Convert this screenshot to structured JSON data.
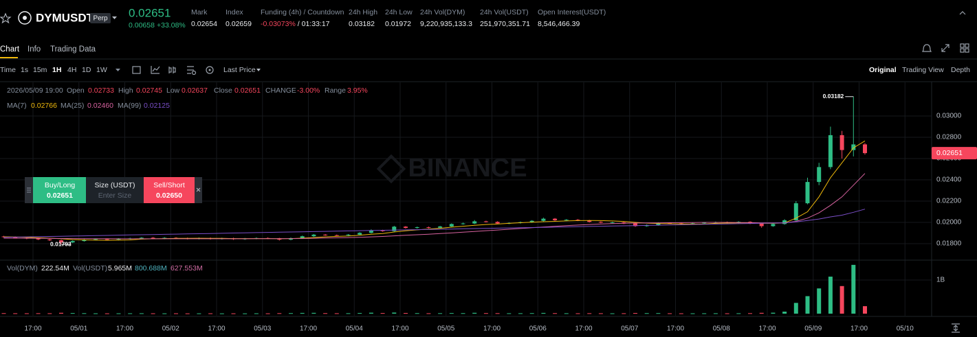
{
  "header": {
    "symbol": "DYMUSDT",
    "badge": "Perp",
    "price": "0.02651",
    "change": "0.00658",
    "change_pct": "+33.08%",
    "stats": [
      {
        "label": "Mark",
        "value": "0.02654"
      },
      {
        "label": "Index",
        "value": "0.02659"
      },
      {
        "label": "Funding (4h) / Countdown",
        "value": "-0.03073%",
        "countdown": "/ 01:33:17"
      },
      {
        "label": "24h High",
        "value": "0.03182"
      },
      {
        "label": "24h Low",
        "value": "0.01972"
      },
      {
        "label": "24h Vol(DYM)",
        "value": "9,220,935,133.3"
      },
      {
        "label": "24h Vol(USDT)",
        "value": "251,970,351.71"
      },
      {
        "label": "Open Interest(USDT)",
        "value": "8,546,466.39"
      }
    ]
  },
  "tabs": [
    "Chart",
    "Info",
    "Trading Data"
  ],
  "toolbar": {
    "intervals": [
      "Time",
      "1s",
      "15m",
      "1H",
      "4H",
      "1D",
      "1W"
    ],
    "price_source": "Last Price",
    "views": [
      "Original",
      "Trading View",
      "Depth"
    ]
  },
  "ohlc_info": {
    "time": "2026/05/09 19:00",
    "fields": [
      {
        "label": "Open",
        "value": "0.02733"
      },
      {
        "label": "High",
        "value": "0.02745"
      },
      {
        "label": "Low",
        "value": "0.02637"
      },
      {
        "label": "Close",
        "value": "0.02651"
      },
      {
        "label": "CHANGE",
        "value": "-3.00%"
      },
      {
        "label": "Range",
        "value": "3.95%"
      }
    ]
  },
  "ma_legend": [
    {
      "name": "MA(7)",
      "value": "0.02766"
    },
    {
      "name": "MA(25)",
      "value": "0.02460"
    },
    {
      "name": "MA(99)",
      "value": "0.02125"
    }
  ],
  "order_panel": {
    "buy": {
      "label": "Buy/Long",
      "price": "0.02651"
    },
    "size": {
      "label": "Size (USDT)",
      "placeholder": "Enter Size"
    },
    "sell": {
      "label": "Sell/Short",
      "price": "0.02650"
    }
  },
  "watermark": "BINANCE",
  "volume_legend": [
    {
      "label": "Vol(DYM)",
      "value": "222.54M"
    },
    {
      "label": "Vol(USDT)",
      "value": "5.965M"
    },
    {
      "value": "800.688M"
    },
    {
      "value": "627.553M"
    }
  ],
  "chart_data": [
    {
      "type": "candlestick",
      "up_color": "#2ebd85",
      "down_color": "#f6465d",
      "grid": true,
      "open": [
        0.01868,
        0.01862,
        0.01855,
        0.01848,
        0.0184,
        0.01832,
        0.01812,
        0.01825,
        0.01838,
        0.01843,
        0.01838,
        0.01846,
        0.0185,
        0.01856,
        0.01848,
        0.01855,
        0.01851,
        0.01846,
        0.01852,
        0.01845,
        0.0185,
        0.01842,
        0.01848,
        0.01853,
        0.01849,
        0.01838,
        0.01852,
        0.0187,
        0.01885,
        0.0188,
        0.01878,
        0.01885,
        0.01902,
        0.01925,
        0.01918,
        0.0196,
        0.01948,
        0.01955,
        0.0195,
        0.01962,
        0.01985,
        0.0199,
        0.0201,
        0.02005,
        0.0199,
        0.01995,
        0.02002,
        0.02015,
        0.02035,
        0.0202,
        0.02025,
        0.02018,
        0.02005,
        0.01998,
        0.02,
        0.0199,
        0.01965,
        0.01975,
        0.01995,
        0.01992,
        0.01985,
        0.01992,
        0.01998,
        0.02002,
        0.01995,
        0.02005,
        0.0199,
        0.01965,
        0.01985,
        0.0202,
        0.0218,
        0.0238,
        0.0252,
        0.0282,
        0.0268,
        0.02733
      ],
      "high": [
        0.01874,
        0.01868,
        0.01861,
        0.01854,
        0.01846,
        0.01838,
        0.01831,
        0.01844,
        0.01849,
        0.01849,
        0.01852,
        0.01856,
        0.01862,
        0.01862,
        0.01861,
        0.01861,
        0.01857,
        0.01858,
        0.01858,
        0.01856,
        0.01856,
        0.01854,
        0.01859,
        0.01859,
        0.01855,
        0.01858,
        0.01876,
        0.01891,
        0.01891,
        0.01886,
        0.01891,
        0.01908,
        0.01935,
        0.01931,
        0.01968,
        0.01966,
        0.01961,
        0.01961,
        0.01968,
        0.01991,
        0.01998,
        0.02022,
        0.02016,
        0.02011,
        0.02001,
        0.02008,
        0.02021,
        0.02045,
        0.02041,
        0.02031,
        0.02031,
        0.02024,
        0.02011,
        0.02006,
        0.02006,
        0.01996,
        0.01981,
        0.02001,
        0.02001,
        0.01998,
        0.01998,
        0.02004,
        0.02008,
        0.02008,
        0.02011,
        0.02011,
        0.01996,
        0.01991,
        0.0203,
        0.022,
        0.0242,
        0.0256,
        0.029,
        0.0286,
        0.03182,
        0.02745
      ],
      "low": [
        0.01856,
        0.01849,
        0.01842,
        0.01834,
        0.01826,
        0.01793,
        0.01806,
        0.01819,
        0.01832,
        0.01832,
        0.01832,
        0.0184,
        0.01844,
        0.01842,
        0.01842,
        0.01845,
        0.0184,
        0.0184,
        0.01839,
        0.01839,
        0.01836,
        0.01836,
        0.01842,
        0.01843,
        0.0183,
        0.01832,
        0.01846,
        0.01864,
        0.01874,
        0.01872,
        0.01872,
        0.01879,
        0.01896,
        0.01912,
        0.01912,
        0.01942,
        0.01942,
        0.01944,
        0.01944,
        0.01956,
        0.01979,
        0.01984,
        0.01999,
        0.01984,
        0.01984,
        0.01989,
        0.01996,
        0.02009,
        0.02014,
        0.02014,
        0.02012,
        0.01999,
        0.01992,
        0.01992,
        0.01984,
        0.01958,
        0.01959,
        0.01969,
        0.01986,
        0.01979,
        0.01979,
        0.01986,
        0.01992,
        0.01989,
        0.01989,
        0.01984,
        0.0195,
        0.01959,
        0.01979,
        0.02014,
        0.0217,
        0.0235,
        0.025,
        0.026,
        0.0262,
        0.02637
      ],
      "close": [
        0.01862,
        0.01855,
        0.01848,
        0.0184,
        0.01832,
        0.01812,
        0.01825,
        0.01838,
        0.01843,
        0.01838,
        0.01846,
        0.0185,
        0.01856,
        0.01848,
        0.01855,
        0.01851,
        0.01846,
        0.01852,
        0.01845,
        0.0185,
        0.01842,
        0.01848,
        0.01853,
        0.01849,
        0.01838,
        0.01852,
        0.0187,
        0.01885,
        0.0188,
        0.01878,
        0.01885,
        0.01902,
        0.01925,
        0.01918,
        0.0196,
        0.01948,
        0.01955,
        0.0195,
        0.01962,
        0.01985,
        0.0199,
        0.0201,
        0.02005,
        0.0199,
        0.01995,
        0.02002,
        0.02015,
        0.02035,
        0.0202,
        0.02025,
        0.02018,
        0.02005,
        0.01998,
        0.02,
        0.0199,
        0.01965,
        0.01975,
        0.01995,
        0.01992,
        0.01985,
        0.01992,
        0.01998,
        0.02002,
        0.01995,
        0.02005,
        0.0199,
        0.01965,
        0.01985,
        0.0202,
        0.0218,
        0.0238,
        0.0252,
        0.0282,
        0.0268,
        0.02733,
        0.02651
      ],
      "ma_series": [
        {
          "color": "#f0b90b",
          "values": [
            0.01865,
            0.01863,
            0.0186,
            0.01856,
            0.01852,
            0.01846,
            0.01839,
            0.01836,
            0.01833,
            0.01832,
            0.01833,
            0.01835,
            0.01843,
            0.01846,
            0.01848,
            0.0185,
            0.0185,
            0.01851,
            0.0185,
            0.0185,
            0.01848,
            0.01848,
            0.01848,
            0.01848,
            0.01847,
            0.01848,
            0.01852,
            0.01858,
            0.01864,
            0.01869,
            0.01872,
            0.01879,
            0.01889,
            0.01896,
            0.0191,
            0.01921,
            0.0193,
            0.01937,
            0.01945,
            0.01955,
            0.01964,
            0.01973,
            0.0198,
            0.01985,
            0.01991,
            0.01997,
            0.02002,
            0.02007,
            0.0201,
            0.02014,
            0.02017,
            0.02018,
            0.02017,
            0.02014,
            0.02009,
            0.02,
            0.01993,
            0.0199,
            0.01988,
            0.01986,
            0.01985,
            0.01985,
            0.01991,
            0.01994,
            0.01996,
            0.01995,
            0.01992,
            0.01991,
            0.01995,
            0.0204,
            0.021,
            0.0224,
            0.0242,
            0.0256,
            0.027,
            0.02766
          ]
        },
        {
          "color": "#d863a0",
          "values": [
            0.01852,
            0.01852,
            0.01851,
            0.01851,
            0.0185,
            0.01849,
            0.01848,
            0.01848,
            0.01847,
            0.01847,
            0.01846,
            0.01846,
            0.01846,
            0.01846,
            0.01846,
            0.01846,
            0.01846,
            0.01846,
            0.01846,
            0.01846,
            0.01846,
            0.01846,
            0.01847,
            0.01847,
            0.01847,
            0.01848,
            0.01849,
            0.01851,
            0.01853,
            0.01855,
            0.01857,
            0.0186,
            0.01864,
            0.01868,
            0.01874,
            0.01879,
            0.01884,
            0.01889,
            0.01895,
            0.01901,
            0.01908,
            0.01915,
            0.01922,
            0.01929,
            0.01936,
            0.01943,
            0.0195,
            0.01957,
            0.01963,
            0.01969,
            0.01975,
            0.0198,
            0.01985,
            0.01989,
            0.01992,
            0.01994,
            0.01995,
            0.01996,
            0.01997,
            0.01998,
            0.01999,
            0.02,
            0.02,
            0.02,
            0.01999,
            0.01998,
            0.01996,
            0.01995,
            0.01995,
            0.0201,
            0.0204,
            0.0209,
            0.0216,
            0.0224,
            0.0235,
            0.0246
          ]
        },
        {
          "color": "#7b4fc9",
          "values": [
            0.0186,
            0.01862,
            0.01864,
            0.01866,
            0.01868,
            0.0187,
            0.01872,
            0.01874,
            0.01876,
            0.01878,
            0.0188,
            0.01882,
            0.01884,
            0.01886,
            0.01888,
            0.0189,
            0.01892,
            0.01894,
            0.01896,
            0.01898,
            0.019,
            0.01902,
            0.01904,
            0.01906,
            0.01908,
            0.0191,
            0.01912,
            0.01914,
            0.01916,
            0.01918,
            0.0192,
            0.01922,
            0.01924,
            0.01926,
            0.01928,
            0.0193,
            0.01932,
            0.01934,
            0.01936,
            0.01938,
            0.0194,
            0.01942,
            0.01944,
            0.01946,
            0.01948,
            0.0195,
            0.01952,
            0.01954,
            0.01956,
            0.01958,
            0.0196,
            0.01962,
            0.01964,
            0.01966,
            0.01968,
            0.0197,
            0.01972,
            0.01974,
            0.01976,
            0.01978,
            0.0198,
            0.01982,
            0.01984,
            0.01986,
            0.01988,
            0.0199,
            0.01992,
            0.01994,
            0.01996,
            0.02005,
            0.02018,
            0.02032,
            0.02052,
            0.02068,
            0.02095,
            0.02125
          ]
        }
      ],
      "ylim": [
        0.01652,
        0.03316
      ],
      "yticks": [
        {
          "value": 0.018,
          "label": "0.01800"
        },
        {
          "value": 0.02,
          "label": "0.02000"
        },
        {
          "value": 0.022,
          "label": "0.02200"
        },
        {
          "value": 0.024,
          "label": "0.02400"
        },
        {
          "value": 0.026,
          "label": "0.02600"
        },
        {
          "value": 0.028,
          "label": "0.02800"
        },
        {
          "value": 0.03,
          "label": "0.03000"
        }
      ]
    },
    {
      "type": "bar",
      "values": [
        15000000.0,
        12000000.0,
        11000000.0,
        13000000.0,
        12000000.0,
        25000000.0,
        18000000.0,
        14000000.0,
        10000000.0,
        9000000.0,
        10000000.0,
        11000000.0,
        12000000.0,
        10000000.0,
        9000000.0,
        10000000.0,
        8000000.0,
        9000000.0,
        10000000.0,
        8000000.0,
        9000000.0,
        8000000.0,
        10000000.0,
        9000000.0,
        14000000.0,
        16000000.0,
        22000000.0,
        24000000.0,
        15000000.0,
        12000000.0,
        13000000.0,
        20000000.0,
        28000000.0,
        18000000.0,
        32000000.0,
        20000000.0,
        15000000.0,
        12000000.0,
        14000000.0,
        18000000.0,
        15000000.0,
        25000000.0,
        16000000.0,
        14000000.0,
        12000000.0,
        13000000.0,
        16000000.0,
        22000000.0,
        15000000.0,
        12000000.0,
        11000000.0,
        13000000.0,
        12000000.0,
        10000000.0,
        12000000.0,
        20000000.0,
        15000000.0,
        16000000.0,
        11000000.0,
        10000000.0,
        10000000.0,
        11000000.0,
        12000000.0,
        10000000.0,
        12000000.0,
        14000000.0,
        24000000.0,
        28000000.0,
        60000000.0,
        320000000.0,
        520000000.0,
        750000000.0,
        1100000000.0,
        820000000.0,
        1450000000.0,
        222540000.0
      ],
      "ylim": [
        0,
        1570000000
      ],
      "yticks": [
        {
          "value": 1000000000,
          "label": "1B"
        }
      ],
      "xticks": [
        "17:00",
        "05/01",
        "17:00",
        "05/02",
        "17:00",
        "05/03",
        "17:00",
        "05/04",
        "17:00",
        "05/05",
        "17:00",
        "05/06",
        "17:00",
        "05/07",
        "17:00",
        "05/08",
        "17:00",
        "05/09",
        "17:00",
        "05/10"
      ]
    }
  ]
}
